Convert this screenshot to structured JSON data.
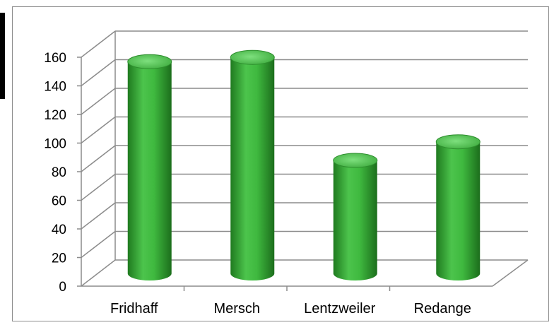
{
  "chart_data": {
    "type": "bar",
    "style": "3d-cylinder",
    "categories": [
      "Fridhaff",
      "Mersch",
      "Lentzweiler",
      "Redange"
    ],
    "values": [
      148,
      151,
      79,
      92
    ],
    "ylim": [
      0,
      160
    ],
    "yticks": [
      "0",
      "20",
      "40",
      "60",
      "80",
      "100",
      "120",
      "140",
      "160"
    ],
    "grid": true,
    "legend": "none",
    "colors": {
      "bar": "#3fb93f",
      "bar_dark": "#1f7a1f",
      "bar_light": "#7ee07e",
      "grid": "#8c8c8c"
    }
  }
}
